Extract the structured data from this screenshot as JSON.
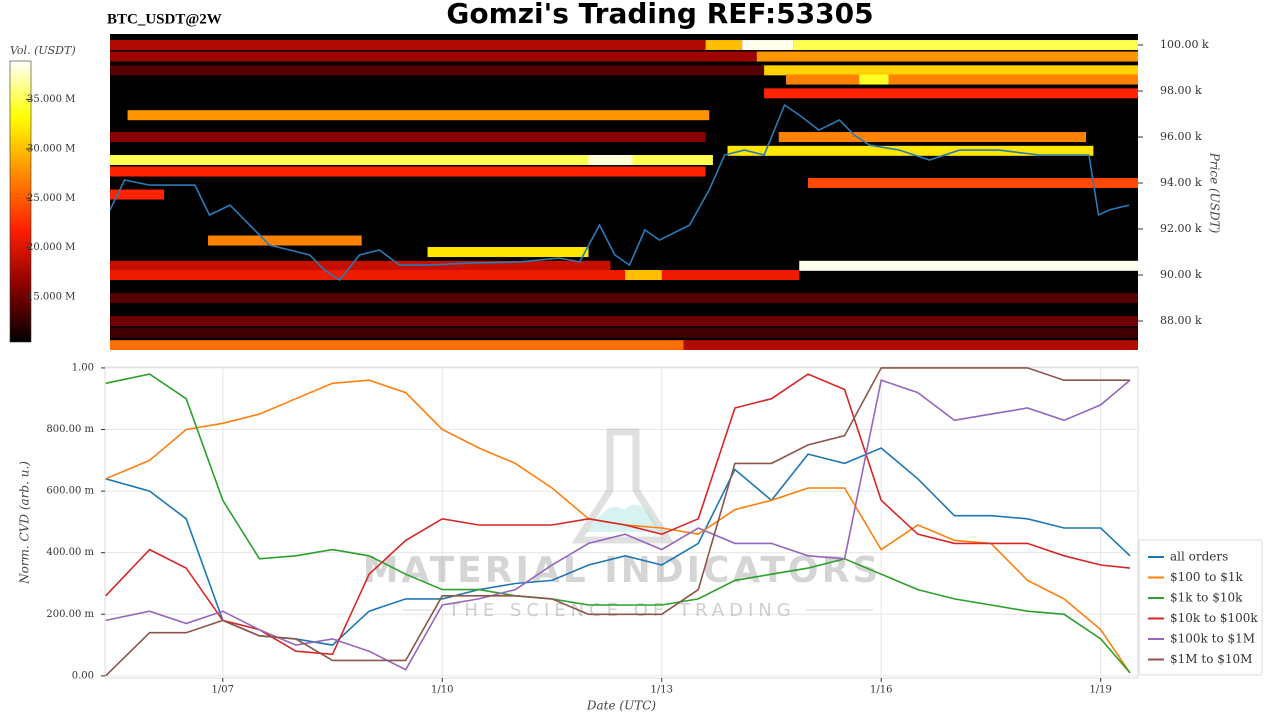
{
  "header": {
    "title": "Gomzi's Trading REF:53305",
    "symbol": "BTC_USDT@2W"
  },
  "watermark": {
    "name": "MATERIAL INDICATORS",
    "tagline": "THE SCIENCE OF TRADING"
  },
  "chart_data": [
    {
      "type": "heatmap",
      "xlim": [
        5.46,
        19.51
      ],
      "ylim": [
        86740,
        100480
      ],
      "yticks": [
        {
          "value": 88000,
          "label": "88.00 k"
        },
        {
          "value": 90000,
          "label": "90.00 k"
        },
        {
          "value": 92000,
          "label": "92.00 k"
        },
        {
          "value": 94000,
          "label": "94.00 k"
        },
        {
          "value": 96000,
          "label": "96.00 k"
        },
        {
          "value": 98000,
          "label": "98.00 k"
        },
        {
          "value": 100000,
          "label": "100.00 k"
        }
      ],
      "ylabel": "Price (USDT)",
      "colormap": [
        "#000000",
        "#8b0000",
        "#ff2000",
        "#ff8c00",
        "#ffff00",
        "#ffffff"
      ],
      "colorbar": {
        "label": "Vol. (USDT)",
        "lim": [
          10450000,
          38900000
        ],
        "ticks": [
          {
            "value": 15000000,
            "label": "15.000 M"
          },
          {
            "value": 20000000,
            "label": "20.000 M"
          },
          {
            "value": 25000000,
            "label": "25.000 M"
          },
          {
            "value": 30000000,
            "label": "30.000 M"
          },
          {
            "value": 35000000,
            "label": "35.000 M"
          }
        ]
      },
      "cells": [
        {
          "x": [
            5.46,
            13.6
          ],
          "price": 100000,
          "volume": 18000000
        },
        {
          "x": [
            13.6,
            14.1
          ],
          "price": 100000,
          "volume": 30000000
        },
        {
          "x": [
            14.1,
            14.8
          ],
          "price": 100000,
          "volume": 38500000
        },
        {
          "x": [
            14.8,
            19.51
          ],
          "price": 100000,
          "volume": 35000000
        },
        {
          "x": [
            5.46,
            14.3
          ],
          "price": 99500,
          "volume": 17000000
        },
        {
          "x": [
            14.3,
            19.51
          ],
          "price": 99500,
          "volume": 28000000
        },
        {
          "x": [
            5.46,
            14.4
          ],
          "price": 98900,
          "volume": 14000000
        },
        {
          "x": [
            14.4,
            19.51
          ],
          "price": 98900,
          "volume": 31000000
        },
        {
          "x": [
            14.7,
            19.51
          ],
          "price": 98500,
          "volume": 27000000
        },
        {
          "x": [
            15.7,
            16.1
          ],
          "price": 98500,
          "volume": 34000000
        },
        {
          "x": [
            14.4,
            19.51
          ],
          "price": 97900,
          "volume": 22000000
        },
        {
          "x": [
            5.7,
            13.65
          ],
          "price": 96950,
          "volume": 28000000
        },
        {
          "x": [
            5.46,
            13.6
          ],
          "price": 96000,
          "volume": 16000000
        },
        {
          "x": [
            14.6,
            18.8
          ],
          "price": 96000,
          "volume": 27000000
        },
        {
          "x": [
            13.9,
            18.9
          ],
          "price": 95400,
          "volume": 32000000
        },
        {
          "x": [
            5.46,
            13.7
          ],
          "price": 95000,
          "volume": 35000000
        },
        {
          "x": [
            12.0,
            12.6
          ],
          "price": 95000,
          "volume": 38000000
        },
        {
          "x": [
            5.46,
            13.6
          ],
          "price": 94500,
          "volume": 22000000
        },
        {
          "x": [
            15.0,
            19.51
          ],
          "price": 94000,
          "volume": 24000000
        },
        {
          "x": [
            5.46,
            6.2
          ],
          "price": 93500,
          "volume": 22000000
        },
        {
          "x": [
            6.8,
            8.9
          ],
          "price": 91500,
          "volume": 27000000
        },
        {
          "x": [
            9.8,
            12.0
          ],
          "price": 91000,
          "volume": 32000000
        },
        {
          "x": [
            5.46,
            12.3
          ],
          "price": 90400,
          "volume": 19000000
        },
        {
          "x": [
            14.88,
            19.51
          ],
          "price": 90400,
          "volume": 38500000
        },
        {
          "x": [
            5.46,
            14.88
          ],
          "price": 90000,
          "volume": 21000000
        },
        {
          "x": [
            12.5,
            13.0
          ],
          "price": 90000,
          "volume": 30000000
        },
        {
          "x": [
            5.46,
            19.51
          ],
          "price": 89000,
          "volume": 14000000
        },
        {
          "x": [
            5.46,
            19.51
          ],
          "price": 88000,
          "volume": 15000000
        },
        {
          "x": [
            5.46,
            19.51
          ],
          "price": 87500,
          "volume": 13000000
        },
        {
          "x": [
            5.46,
            13.3
          ],
          "price": 86950,
          "volume": 26000000
        },
        {
          "x": [
            13.3,
            19.51
          ],
          "price": 86950,
          "volume": 18000000
        }
      ],
      "line": {
        "color": "#2a7ab8",
        "x": [
          5.46,
          5.66,
          6.0,
          6.34,
          6.62,
          6.82,
          7.1,
          7.37,
          7.64,
          7.92,
          8.19,
          8.39,
          8.6,
          8.87,
          9.14,
          9.42,
          9.83,
          10.37,
          11.06,
          11.6,
          11.88,
          12.15,
          12.36,
          12.56,
          12.77,
          12.97,
          13.38,
          13.65,
          13.86,
          14.13,
          14.4,
          14.68,
          14.88,
          15.15,
          15.43,
          15.63,
          15.84,
          16.25,
          16.66,
          17.07,
          17.61,
          18.16,
          18.84,
          18.97,
          19.12,
          19.39
        ],
        "values": [
          92830,
          94130,
          93910,
          93910,
          93910,
          92610,
          93040,
          92170,
          91300,
          91090,
          90870,
          90220,
          89780,
          90870,
          91090,
          90430,
          90430,
          90520,
          90570,
          90740,
          90570,
          92170,
          90870,
          90430,
          91960,
          91520,
          92170,
          93700,
          95220,
          95430,
          95220,
          97390,
          96960,
          96300,
          96740,
          96090,
          95650,
          95430,
          95000,
          95430,
          95430,
          95220,
          95220,
          92610,
          92830,
          93040
        ]
      }
    },
    {
      "type": "line",
      "xlim": [
        5.39,
        19.51
      ],
      "ylim": [
        -0.007,
        1.003
      ],
      "xticks": [
        {
          "value": 7,
          "label": "1/07"
        },
        {
          "value": 10,
          "label": "1/10"
        },
        {
          "value": 13,
          "label": "1/13"
        },
        {
          "value": 16,
          "label": "1/16"
        },
        {
          "value": 19,
          "label": "1/19"
        }
      ],
      "yticks": [
        {
          "value": 0,
          "label": "0.00"
        },
        {
          "value": 0.2,
          "label": "200.00 m"
        },
        {
          "value": 0.4,
          "label": "400.00 m"
        },
        {
          "value": 0.6,
          "label": "600.00 m"
        },
        {
          "value": 0.8,
          "label": "800.00 m"
        },
        {
          "value": 1,
          "label": "1.00"
        }
      ],
      "xlabel": "Date (UTC)",
      "ylabel": "Norm. CVD (arb. u.)",
      "grid": true,
      "legend": "right",
      "x": [
        5.4,
        6,
        6.5,
        7,
        7.5,
        8,
        8.5,
        9,
        9.5,
        10,
        10.5,
        11,
        11.5,
        12,
        12.5,
        13,
        13.5,
        14,
        14.5,
        15,
        15.5,
        16,
        16.5,
        17,
        17.5,
        18,
        18.5,
        19,
        19.4
      ],
      "series": [
        {
          "name": "all orders",
          "color": "#1f77b4",
          "values": [
            0.64,
            0.6,
            0.51,
            0.18,
            0.13,
            0.12,
            0.1,
            0.21,
            0.25,
            0.25,
            0.28,
            0.3,
            0.31,
            0.36,
            0.39,
            0.36,
            0.43,
            0.67,
            0.57,
            0.72,
            0.69,
            0.74,
            0.64,
            0.52,
            0.52,
            0.51,
            0.48,
            0.48,
            0.39
          ]
        },
        {
          "name": "$100 to $1k",
          "color": "#ff7f0e",
          "values": [
            0.64,
            0.7,
            0.8,
            0.82,
            0.85,
            0.9,
            0.95,
            0.96,
            0.92,
            0.8,
            0.74,
            0.69,
            0.61,
            0.51,
            0.49,
            0.48,
            0.46,
            0.54,
            0.57,
            0.61,
            0.61,
            0.41,
            0.49,
            0.44,
            0.43,
            0.31,
            0.25,
            0.15,
            0.01
          ]
        },
        {
          "name": "$1k to $10k",
          "color": "#2ca02c",
          "values": [
            0.95,
            0.98,
            0.9,
            0.57,
            0.38,
            0.39,
            0.41,
            0.39,
            0.33,
            0.28,
            0.28,
            0.26,
            0.25,
            0.23,
            0.23,
            0.23,
            0.25,
            0.31,
            0.33,
            0.35,
            0.38,
            0.33,
            0.28,
            0.25,
            0.23,
            0.21,
            0.2,
            0.12,
            0.01
          ]
        },
        {
          "name": "$10k to $100k",
          "color": "#d62728",
          "values": [
            0.26,
            0.41,
            0.35,
            0.18,
            0.15,
            0.08,
            0.07,
            0.33,
            0.44,
            0.51,
            0.49,
            0.49,
            0.49,
            0.51,
            0.49,
            0.46,
            0.51,
            0.87,
            0.9,
            0.98,
            0.93,
            0.57,
            0.46,
            0.43,
            0.43,
            0.43,
            0.39,
            0.36,
            0.35
          ]
        },
        {
          "name": "$100k to $1M",
          "color": "#9467bd",
          "values": [
            0.18,
            0.21,
            0.17,
            0.21,
            0.15,
            0.1,
            0.12,
            0.08,
            0.02,
            0.23,
            0.25,
            0.28,
            0.36,
            0.43,
            0.46,
            0.41,
            0.48,
            0.43,
            0.43,
            0.39,
            0.38,
            0.96,
            0.92,
            0.83,
            0.85,
            0.87,
            0.83,
            0.88,
            0.96
          ]
        },
        {
          "name": "$1M to $10M",
          "color": "#8c564b",
          "values": [
            0.0,
            0.14,
            0.14,
            0.18,
            0.13,
            0.12,
            0.05,
            0.05,
            0.05,
            0.26,
            0.26,
            0.26,
            0.25,
            0.2,
            0.2,
            0.2,
            0.28,
            0.69,
            0.69,
            0.75,
            0.78,
            1.0,
            1.0,
            1.0,
            1.0,
            1.0,
            0.96,
            0.96,
            0.96
          ]
        }
      ]
    }
  ]
}
